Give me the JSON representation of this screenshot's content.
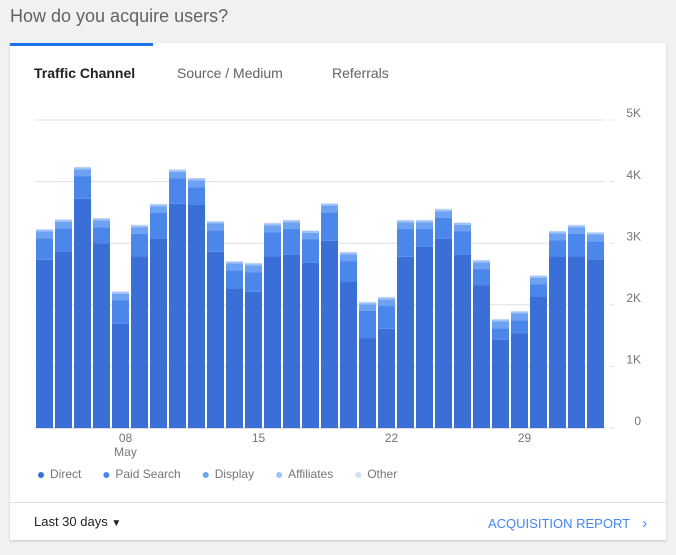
{
  "title": "How do you acquire users?",
  "tabs": [
    "Traffic Channel",
    "Source / Medium",
    "Referrals"
  ],
  "footer": {
    "range": "Last 30 days",
    "link": "ACQUISITION REPORT"
  },
  "chart_data": {
    "type": "stacked_bar",
    "categories": [
      null,
      null,
      null,
      null,
      "08",
      null,
      null,
      null,
      null,
      null,
      null,
      "15",
      null,
      null,
      null,
      null,
      null,
      null,
      "22",
      null,
      null,
      null,
      null,
      null,
      null,
      "29",
      null,
      null,
      null,
      null
    ],
    "month_label": "May",
    "ylim": [
      0,
      5000
    ],
    "yticks": [
      0,
      {
        "value": 1000,
        "label": "1K"
      },
      {
        "value": 2000,
        "label": "2K"
      },
      {
        "value": 3000,
        "label": "3K"
      },
      {
        "value": 4000,
        "label": "4K"
      },
      {
        "value": 5000,
        "label": "5K"
      }
    ],
    "grid": true,
    "series": [
      {
        "name": "Direct",
        "color": "#3a6fd8",
        "values": [
          2730,
          2870,
          3720,
          3000,
          1690,
          2790,
          3080,
          3640,
          3620,
          2860,
          2270,
          2210,
          2790,
          2820,
          2680,
          3040,
          2370,
          1460,
          1610,
          2780,
          2940,
          3070,
          2820,
          2320,
          1430,
          1540,
          2140,
          2790,
          2790,
          2740
        ]
      },
      {
        "name": "Paid Search",
        "color": "#4b86ea",
        "values": [
          350,
          370,
          370,
          260,
          380,
          360,
          410,
          410,
          290,
          350,
          290,
          320,
          390,
          410,
          380,
          460,
          340,
          440,
          370,
          450,
          290,
          340,
          370,
          260,
          190,
          210,
          190,
          260,
          360,
          290
        ]
      },
      {
        "name": "Display",
        "color": "#6da2f3",
        "values": [
          110,
          110,
          110,
          110,
          110,
          110,
          110,
          110,
          110,
          110,
          110,
          110,
          110,
          110,
          110,
          110,
          110,
          110,
          110,
          110,
          110,
          110,
          110,
          110,
          110,
          110,
          110,
          110,
          110,
          110
        ]
      },
      {
        "name": "Affiliates",
        "color": "#a0c1f8",
        "values": [
          30,
          30,
          30,
          30,
          30,
          30,
          30,
          30,
          30,
          30,
          30,
          30,
          30,
          30,
          30,
          30,
          30,
          30,
          30,
          30,
          30,
          30,
          30,
          30,
          30,
          30,
          30,
          30,
          30,
          30
        ]
      },
      {
        "name": "Other",
        "color": "#cfdffb",
        "values": [
          10,
          10,
          10,
          10,
          10,
          10,
          10,
          10,
          10,
          10,
          10,
          10,
          10,
          10,
          10,
          10,
          10,
          10,
          10,
          10,
          10,
          10,
          10,
          10,
          10,
          10,
          10,
          10,
          10,
          10
        ]
      }
    ]
  }
}
